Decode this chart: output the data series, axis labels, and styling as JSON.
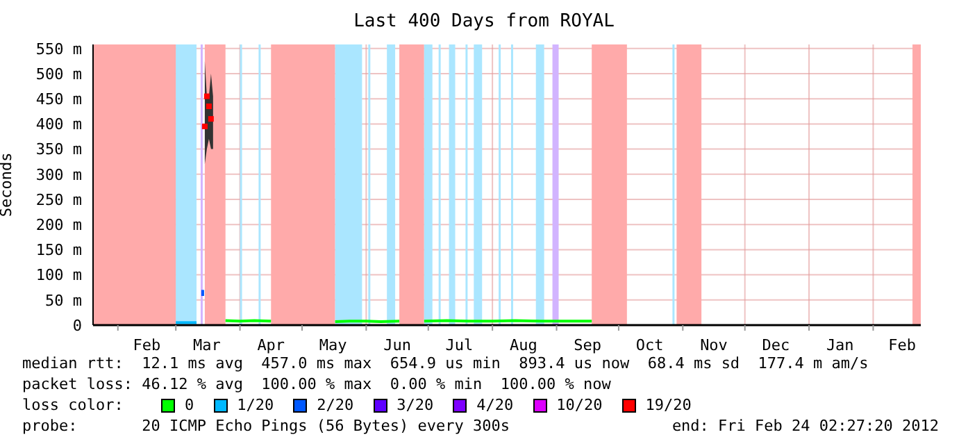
{
  "chart_data": {
    "type": "line",
    "title": "Last 400 Days from ROYAL",
    "ylabel": "Seconds",
    "legend_title": "loss color:",
    "legend": "bottom",
    "grid": true,
    "xlim": [
      "2011-01-20",
      "2012-02-24"
    ],
    "xticks": [
      {
        "value": "2011-02-01",
        "label": null
      },
      {
        "value": "2011-02-15",
        "label": "Feb"
      },
      {
        "value": "2011-03-01",
        "label": null
      },
      {
        "value": "2011-03-16",
        "label": "Mar"
      },
      {
        "value": "2011-04-01",
        "label": null
      },
      {
        "value": "2011-04-16",
        "label": "Apr"
      },
      {
        "value": "2011-05-01",
        "label": null
      },
      {
        "value": "2011-05-16",
        "label": "May"
      },
      {
        "value": "2011-06-01",
        "label": null
      },
      {
        "value": "2011-06-16",
        "label": "Jun"
      },
      {
        "value": "2011-07-01",
        "label": null
      },
      {
        "value": "2011-07-16",
        "label": "Jul"
      },
      {
        "value": "2011-08-01",
        "label": null
      },
      {
        "value": "2011-08-16",
        "label": "Aug"
      },
      {
        "value": "2011-09-01",
        "label": null
      },
      {
        "value": "2011-09-16",
        "label": "Sep"
      },
      {
        "value": "2011-10-01",
        "label": null
      },
      {
        "value": "2011-10-16",
        "label": "Oct"
      },
      {
        "value": "2011-11-01",
        "label": null
      },
      {
        "value": "2011-11-16",
        "label": "Nov"
      },
      {
        "value": "2011-12-01",
        "label": null
      },
      {
        "value": "2011-12-16",
        "label": "Dec"
      },
      {
        "value": "2012-01-01",
        "label": null
      },
      {
        "value": "2012-01-16",
        "label": "Jan"
      },
      {
        "value": "2012-02-01",
        "label": null
      },
      {
        "value": "2012-02-15",
        "label": "Feb"
      }
    ],
    "ylim": [
      0,
      558
    ],
    "yticks": [
      0,
      {
        "value": 50,
        "label": "50 m"
      },
      {
        "value": 100,
        "label": "100 m"
      },
      {
        "value": 150,
        "label": "150 m"
      },
      {
        "value": 200,
        "label": "200 m"
      },
      {
        "value": 250,
        "label": "250 m"
      },
      {
        "value": 300,
        "label": "300 m"
      },
      {
        "value": 350,
        "label": "350 m"
      },
      {
        "value": 400,
        "label": "400 m"
      },
      {
        "value": 450,
        "label": "450 m"
      },
      {
        "value": 500,
        "label": "500 m"
      },
      {
        "value": 550,
        "label": "550 m"
      }
    ],
    "bands": [
      {
        "axis": "x",
        "from": "2011-01-20",
        "to": "2011-03-01",
        "color": "#ffaaaa"
      },
      {
        "axis": "x",
        "from": "2011-03-01",
        "to": "2011-03-11",
        "color": "#aae6ff"
      },
      {
        "axis": "x",
        "from": "2011-03-13",
        "to": "2011-03-14",
        "color": "#d2b4ff"
      },
      {
        "axis": "x",
        "from": "2011-03-15",
        "to": "2011-03-25",
        "color": "#ffaaaa"
      },
      {
        "axis": "x",
        "from": "2011-04-01",
        "to": "2011-04-02",
        "color": "#aae6ff"
      },
      {
        "axis": "x",
        "from": "2011-04-10",
        "to": "2011-04-11",
        "color": "#aae6ff"
      },
      {
        "axis": "x",
        "from": "2011-04-16",
        "to": "2011-05-17",
        "color": "#ffaaaa"
      },
      {
        "axis": "x",
        "from": "2011-05-17",
        "to": "2011-05-30",
        "color": "#aae6ff"
      },
      {
        "axis": "x",
        "from": "2011-06-02",
        "to": "2011-06-03",
        "color": "#aae6ff"
      },
      {
        "axis": "x",
        "from": "2011-06-11",
        "to": "2011-06-15",
        "color": "#aae6ff"
      },
      {
        "axis": "x",
        "from": "2011-06-17",
        "to": "2011-06-29",
        "color": "#ffaaaa"
      },
      {
        "axis": "x",
        "from": "2011-06-29",
        "to": "2011-07-03",
        "color": "#aae6ff"
      },
      {
        "axis": "x",
        "from": "2011-07-06",
        "to": "2011-07-07",
        "color": "#aae6ff"
      },
      {
        "axis": "x",
        "from": "2011-07-11",
        "to": "2011-07-14",
        "color": "#aae6ff"
      },
      {
        "axis": "x",
        "from": "2011-07-19",
        "to": "2011-07-20",
        "color": "#aae6ff"
      },
      {
        "axis": "x",
        "from": "2011-07-23",
        "to": "2011-07-27",
        "color": "#aae6ff"
      },
      {
        "axis": "x",
        "from": "2011-08-04",
        "to": "2011-08-05",
        "color": "#aae6ff"
      },
      {
        "axis": "x",
        "from": "2011-08-10",
        "to": "2011-08-11",
        "color": "#aae6ff"
      },
      {
        "axis": "x",
        "from": "2011-08-22",
        "to": "2011-08-26",
        "color": "#aae6ff"
      },
      {
        "axis": "x",
        "from": "2011-08-30",
        "to": "2011-09-02",
        "color": "#d2b4ff"
      },
      {
        "axis": "x",
        "from": "2011-09-18",
        "to": "2011-10-05",
        "color": "#ffaaaa"
      },
      {
        "axis": "x",
        "from": "2011-10-27",
        "to": "2011-10-28",
        "color": "#aae6ff"
      },
      {
        "axis": "x",
        "from": "2011-10-29",
        "to": "2011-11-10",
        "color": "#ffaaaa"
      },
      {
        "axis": "x",
        "from": "2012-02-20",
        "to": "2012-02-24",
        "color": "#ffaaaa"
      }
    ],
    "series": [
      {
        "name": "0",
        "color": "#00ff00",
        "x": [
          "2011-03-25",
          "2011-04-01",
          "2011-04-08",
          "2011-04-16",
          "2011-04-17",
          "2011-05-17",
          "2011-05-24",
          "2011-06-01",
          "2011-06-08",
          "2011-06-17",
          "2011-06-18",
          "2011-06-29",
          "2011-07-10",
          "2011-07-20",
          "2011-08-01",
          "2011-08-12",
          "2011-08-24",
          "2011-09-05",
          "2011-09-18"
        ],
        "values": [
          9,
          8,
          9,
          8,
          null,
          7,
          8,
          8,
          7,
          8,
          null,
          8,
          9,
          8,
          8,
          9,
          8,
          8,
          8
        ]
      },
      {
        "name": "1/20",
        "color": "#00b8ff",
        "x": [
          "2011-03-01",
          "2011-03-06",
          "2011-03-11"
        ],
        "values": [
          5,
          5,
          5
        ]
      },
      {
        "name": "2/20",
        "color": "#0059ff",
        "x": [
          "2011-03-14",
          "2011-03-14"
        ],
        "values": [
          58,
          70
        ]
      },
      {
        "name": "3/20",
        "color": "#5e00ff"
      },
      {
        "name": "4/20",
        "color": "#7e00ff"
      },
      {
        "name": "10/20",
        "color": "#dd00ff"
      },
      {
        "color": "#333333",
        "x": [
          "2011-03-15",
          "2011-03-16",
          "2011-03-17",
          "2011-03-18",
          "2011-03-19"
        ],
        "values": [
          null,
          null,
          null,
          null,
          null
        ],
        "lower": [
          320,
          350,
          370,
          350,
          350
        ],
        "upper": [
          525,
          455,
          455,
          500,
          455
        ]
      },
      {
        "name": "19/20",
        "type": "scatter",
        "marker": "square",
        "color": "#ff0000",
        "x": [
          "2011-03-15",
          "2011-03-16",
          "2011-03-17",
          "2011-03-18"
        ],
        "values": [
          395,
          455,
          435,
          410
        ]
      }
    ],
    "annotations": [
      "median rtt:  12.1 ms avg  457.0 ms max  654.9 us min  893.4 us now  68.4 ms sd  177.4 m am/s",
      "packet loss: 46.12 % avg  100.00 % max  0.00 % min  100.00 % now",
      "probe:       20 ICMP Echo Pings (56 Bytes) every 300s",
      "end: Fri Feb 24 02:27:20 2012"
    ]
  }
}
